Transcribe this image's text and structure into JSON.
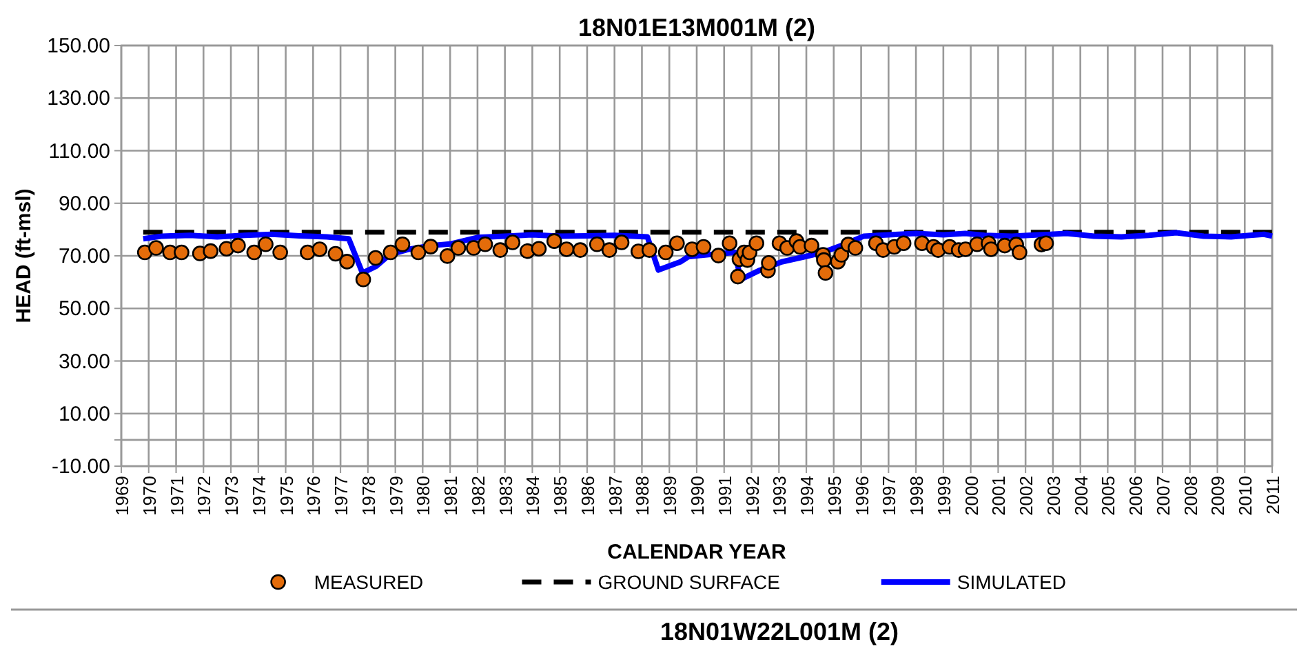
{
  "chart_data": {
    "type": "line",
    "title": "18N01E13M001M (2)",
    "xlabel": "CALENDAR YEAR",
    "ylabel": "HEAD (ft-msl)",
    "annotations": [
      "18N01W22L001M (2)"
    ],
    "xlim": [
      1969,
      2011
    ],
    "xticks": [
      1969,
      1970,
      1971,
      1972,
      1973,
      1974,
      1975,
      1976,
      1977,
      1978,
      1979,
      1980,
      1981,
      1982,
      1983,
      1984,
      1985,
      1986,
      1987,
      1988,
      1989,
      1990,
      1991,
      1992,
      1993,
      1994,
      1995,
      1996,
      1997,
      1998,
      1999,
      2000,
      2001,
      2002,
      2003,
      2004,
      2005,
      2006,
      2007,
      2008,
      2009,
      2010,
      2011
    ],
    "ylim": [
      -10,
      150
    ],
    "yticks": [
      {
        "value": -10,
        "label": "-10.00"
      },
      {
        "value": 0,
        "label": null
      },
      {
        "value": 10,
        "label": "10.00"
      },
      {
        "value": 30,
        "label": "30.00"
      },
      {
        "value": 50,
        "label": "50.00"
      },
      {
        "value": 70,
        "label": "70.00"
      },
      {
        "value": 90,
        "label": "90.00"
      },
      {
        "value": 110,
        "label": "110.00"
      },
      {
        "value": 130,
        "label": "130.00"
      },
      {
        "value": 150,
        "label": "150.00"
      }
    ],
    "grid": true,
    "legend": "bottom",
    "series": [
      {
        "name": "MEASURED",
        "type": "scatter",
        "marker": "circle",
        "color": "#e46c0a",
        "x": [
          1969.86,
          1970.27,
          1970.78,
          1971.2,
          1971.87,
          1972.26,
          1972.84,
          1973.26,
          1973.85,
          1974.27,
          1974.8,
          1975.8,
          1976.24,
          1976.82,
          1977.24,
          1977.83,
          1978.28,
          1978.83,
          1979.26,
          1979.84,
          1980.29,
          1980.9,
          1981.3,
          1981.86,
          1982.28,
          1982.83,
          1983.28,
          1983.82,
          1984.24,
          1984.8,
          1985.25,
          1985.75,
          1986.36,
          1986.81,
          1987.26,
          1987.87,
          1988.27,
          1988.87,
          1989.28,
          1989.83,
          1990.25,
          1990.79,
          1991.2,
          1991.5,
          1991.56,
          1991.73,
          1991.85,
          1991.93,
          1992.18,
          1992.6,
          1992.63,
          1993.02,
          1993.3,
          1993.64,
          1993.77,
          1994.19,
          1994.61,
          1994.64,
          1994.7,
          1995.15,
          1995.28,
          1995.53,
          1995.79,
          1996.54,
          1996.8,
          1997.21,
          1997.55,
          1998.22,
          1998.64,
          1998.81,
          1999.23,
          1999.56,
          1999.81,
          2000.23,
          2000.65,
          2000.74,
          2001.24,
          2001.66,
          2001.78,
          2002.58,
          2002.75
        ],
        "values": [
          71.3,
          73.0,
          71.3,
          71.3,
          70.9,
          71.8,
          72.7,
          73.9,
          71.3,
          74.4,
          71.3,
          71.3,
          72.5,
          70.8,
          67.8,
          61.0,
          69.2,
          71.3,
          74.4,
          71.3,
          73.5,
          69.9,
          73.0,
          73.0,
          74.4,
          72.2,
          75.1,
          71.8,
          72.7,
          75.6,
          72.5,
          72.2,
          74.4,
          72.2,
          75.1,
          71.7,
          72.2,
          71.3,
          74.8,
          72.5,
          73.4,
          70.1,
          74.8,
          62.1,
          68.7,
          71.3,
          68.4,
          71.3,
          74.8,
          64.4,
          67.3,
          74.8,
          73.0,
          75.6,
          73.4,
          73.9,
          70.4,
          68.4,
          63.5,
          67.8,
          70.4,
          74.3,
          73.0,
          74.8,
          72.2,
          73.4,
          74.8,
          74.8,
          73.4,
          72.2,
          73.4,
          72.2,
          72.5,
          74.4,
          74.8,
          72.5,
          73.9,
          74.3,
          71.3,
          74.3,
          74.8
        ]
      },
      {
        "name": "GROUND SURFACE",
        "type": "line",
        "line_style": "dashed",
        "color": "#000000",
        "x": [
          1969.8,
          2011
        ],
        "values": [
          79,
          79
        ]
      },
      {
        "name": "SIMULATED",
        "type": "line",
        "line_style": "solid",
        "color": "#0000ff",
        "x": [
          1969.8,
          1970.5,
          1971.5,
          1972.5,
          1973.5,
          1974.5,
          1975.5,
          1976.5,
          1977.3,
          1977.8,
          1978.3,
          1978.8,
          1979.5,
          1980.3,
          1981,
          1982,
          1983,
          1984,
          1985,
          1986,
          1987,
          1988.2,
          1988.6,
          1989.4,
          1989.7,
          1990.5,
          1991.4,
          1991.6,
          1992.3,
          1993.1,
          1994,
          1994.6,
          1995.3,
          1996.1,
          1997,
          1998,
          1999,
          1999.8,
          2000.5,
          2001.5,
          2002.5,
          2003.5,
          2004.5,
          2005.5,
          2006.5,
          2007.5,
          2008.5,
          2009.5,
          2010.2,
          2010.7,
          2011
        ],
        "values": [
          76.5,
          77.5,
          77.8,
          77.2,
          77.8,
          78.2,
          77.6,
          77.2,
          76.5,
          63.5,
          66,
          70.5,
          72.5,
          73.9,
          74.5,
          77,
          77.5,
          78,
          77.5,
          77.6,
          77.8,
          77.2,
          64.6,
          67.7,
          69.7,
          70.5,
          71.3,
          61,
          64.5,
          67.7,
          69.8,
          71.3,
          74,
          77.5,
          78,
          78.5,
          78,
          78.5,
          77.8,
          77.5,
          78,
          78.5,
          77.5,
          77.2,
          77.8,
          78.8,
          77.5,
          77.2,
          77.8,
          78.2,
          77.5
        ]
      }
    ]
  }
}
